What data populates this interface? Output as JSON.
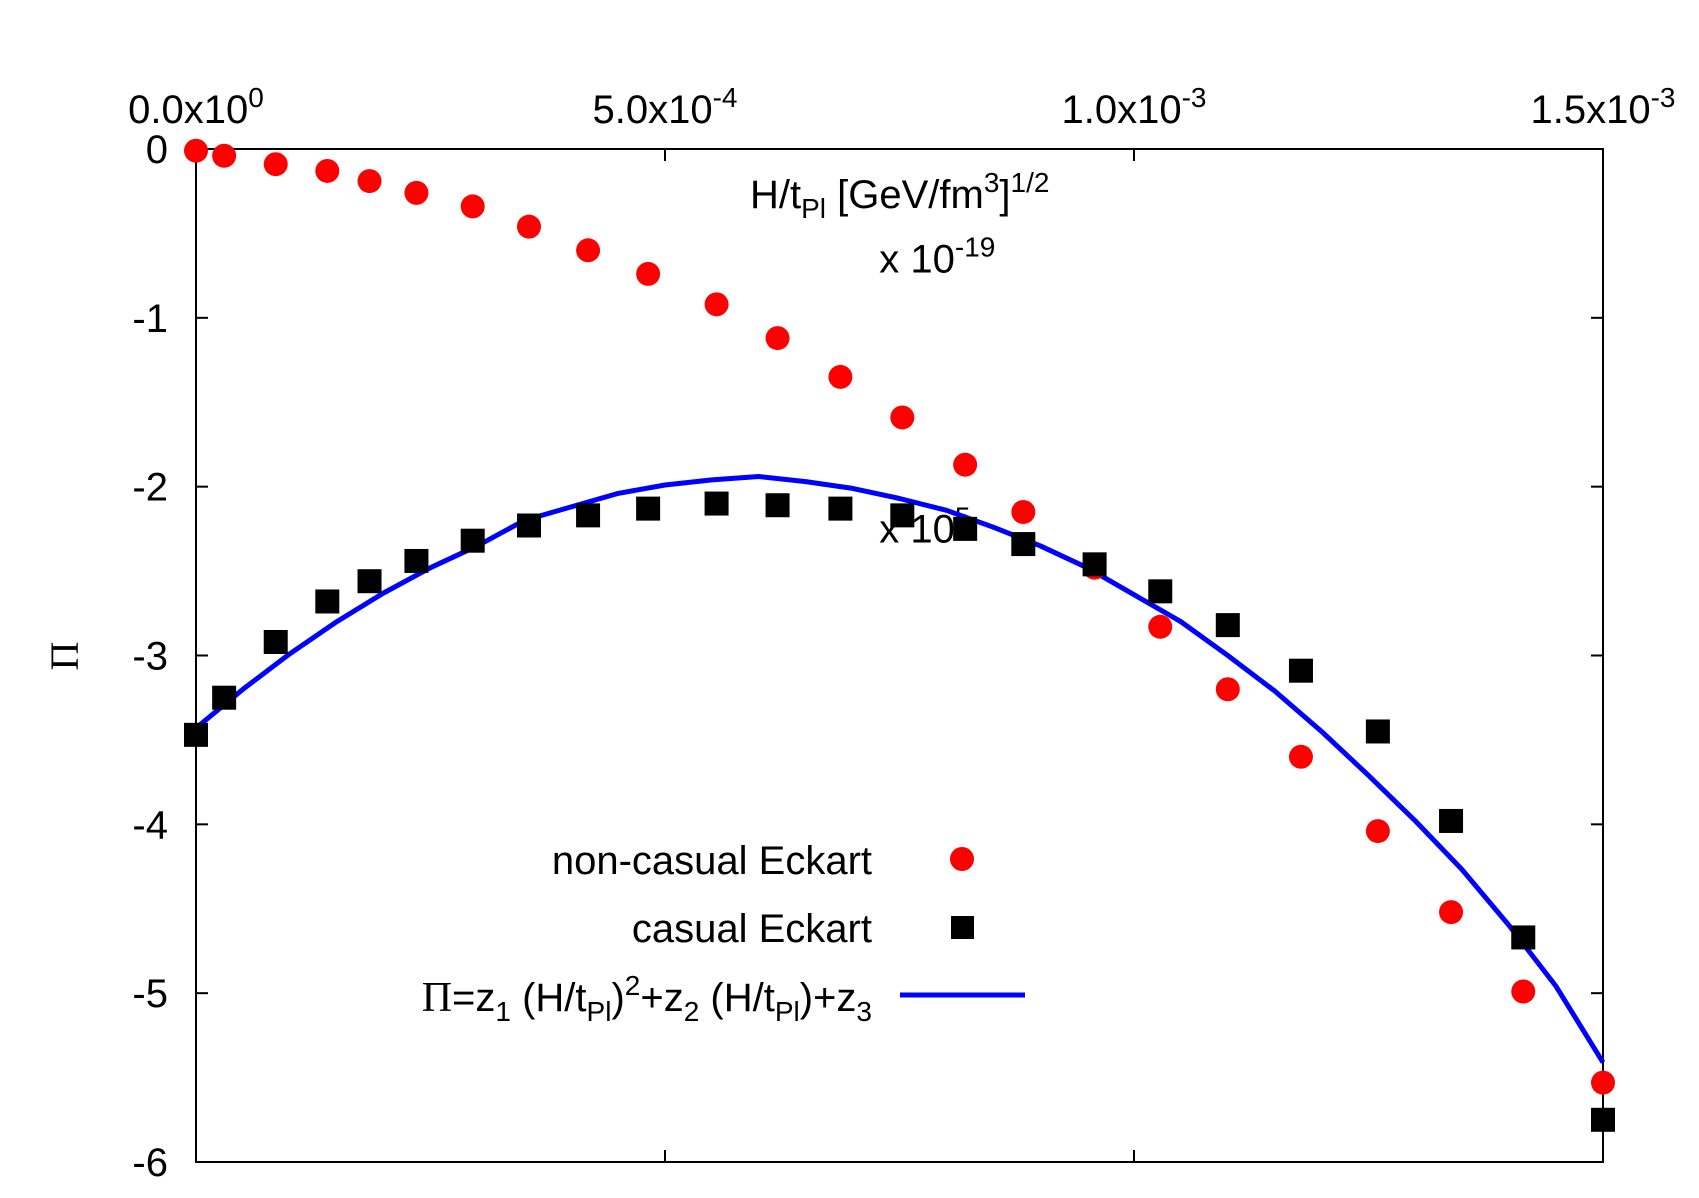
{
  "chart_data": {
    "type": "scatter",
    "title": "",
    "xlabel": {
      "base": "H/t",
      "sub": "Pl",
      "mid": " [GeV/fm",
      "sup1": "3",
      "close": "]",
      "sup2": "1/2"
    },
    "ylabel": "Π",
    "xlim": [
      0,
      0.0015
    ],
    "ylim": [
      -6,
      0
    ],
    "x_ticks": [
      {
        "value": 0,
        "mantissa": "0.0x10",
        "exp": "0"
      },
      {
        "value": 0.0005,
        "mantissa": "5.0x10",
        "exp": "-4"
      },
      {
        "value": 0.001,
        "mantissa": "1.0x10",
        "exp": "-3"
      },
      {
        "value": 0.0015,
        "mantissa": "1.5x10",
        "exp": "-3"
      }
    ],
    "y_ticks": [
      {
        "value": 0,
        "label": "0"
      },
      {
        "value": -1,
        "label": "-1"
      },
      {
        "value": -2,
        "label": "-2"
      },
      {
        "value": -3,
        "label": "-3"
      },
      {
        "value": -4,
        "label": "-4"
      },
      {
        "value": -5,
        "label": "-5"
      },
      {
        "value": -6,
        "label": "-6"
      }
    ],
    "annotations": [
      {
        "text": "x 10",
        "exp": "-19",
        "x": 0.00056,
        "y": -0.85
      },
      {
        "text": "x 10",
        "exp": "5",
        "x": 0.00056,
        "y": -2.45
      }
    ],
    "series": [
      {
        "name": "non-casual Eckart",
        "kind": "circle",
        "color": "#ff0000",
        "x": [
          0,
          3e-05,
          8.5e-05,
          0.00014,
          0.000185,
          0.000235,
          0.000295,
          0.000355,
          0.000418,
          0.000482,
          0.000555,
          0.00062,
          0.000687,
          0.000753,
          0.00082,
          0.000882,
          0.000958,
          0.001028,
          0.0011,
          0.001178,
          0.00126,
          0.001338,
          0.001415,
          0.0015
        ],
        "y": [
          -0.01,
          -0.04,
          -0.09,
          -0.13,
          -0.19,
          -0.26,
          -0.34,
          -0.46,
          -0.6,
          -0.74,
          -0.92,
          -1.12,
          -1.35,
          -1.59,
          -1.87,
          -2.15,
          -2.48,
          -2.83,
          -3.2,
          -3.6,
          -4.04,
          -4.52,
          -4.99,
          -5.53
        ]
      },
      {
        "name": "casual Eckart",
        "kind": "square",
        "color": "#000000",
        "x": [
          0,
          3e-05,
          8.5e-05,
          0.00014,
          0.000185,
          0.000235,
          0.000295,
          0.000355,
          0.000418,
          0.000482,
          0.000555,
          0.00062,
          0.000687,
          0.000753,
          0.00082,
          0.000882,
          0.000958,
          0.001028,
          0.0011,
          0.001178,
          0.00126,
          0.001338,
          0.001415,
          0.0015
        ],
        "y": [
          -3.47,
          -3.25,
          -2.92,
          -2.68,
          -2.56,
          -2.44,
          -2.32,
          -2.23,
          -2.17,
          -2.13,
          -2.1,
          -2.11,
          -2.13,
          -2.17,
          -2.25,
          -2.34,
          -2.46,
          -2.62,
          -2.82,
          -3.09,
          -3.45,
          -3.98,
          -4.67,
          -5.75
        ]
      },
      {
        "name": "Π=z₁ (H/t_Pl)²+z₂ (H/t_Pl)+z₃",
        "kind": "line",
        "color": "#0000ff",
        "x": [
          0,
          5e-05,
          0.0001,
          0.00015,
          0.0002,
          0.00025,
          0.0003,
          0.00035,
          0.0004,
          0.00045,
          0.0005,
          0.00055,
          0.0006,
          0.00065,
          0.0007,
          0.00075,
          0.0008,
          0.00085,
          0.0009,
          0.00095,
          0.001,
          0.00105,
          0.0011,
          0.00115,
          0.0012,
          0.00125,
          0.0013,
          0.00135,
          0.0014,
          0.00145,
          0.0015
        ],
        "y": [
          -3.43,
          -3.2,
          -2.99,
          -2.8,
          -2.63,
          -2.48,
          -2.35,
          -2.2,
          -2.12,
          -2.04,
          -1.99,
          -1.96,
          -1.94,
          -1.97,
          -2.01,
          -2.07,
          -2.14,
          -2.24,
          -2.35,
          -2.48,
          -2.64,
          -2.8,
          -3.0,
          -3.21,
          -3.45,
          -3.71,
          -3.98,
          -4.27,
          -4.6,
          -4.96,
          -5.41
        ]
      }
    ],
    "legend": {
      "placement": "bottom-center",
      "entries": [
        {
          "label": "non-casual Eckart"
        },
        {
          "label": "casual Eckart"
        },
        {
          "pi": "Π",
          "a": "=z",
          "s1": "1",
          "b": " (H/t",
          "s2": "Pl",
          "c": ")",
          "p2": "2",
          "d": "+z",
          "s3": "2",
          "e": " (H/t",
          "s4": "Pl",
          "f": ")+z",
          "s5": "3"
        }
      ]
    }
  }
}
